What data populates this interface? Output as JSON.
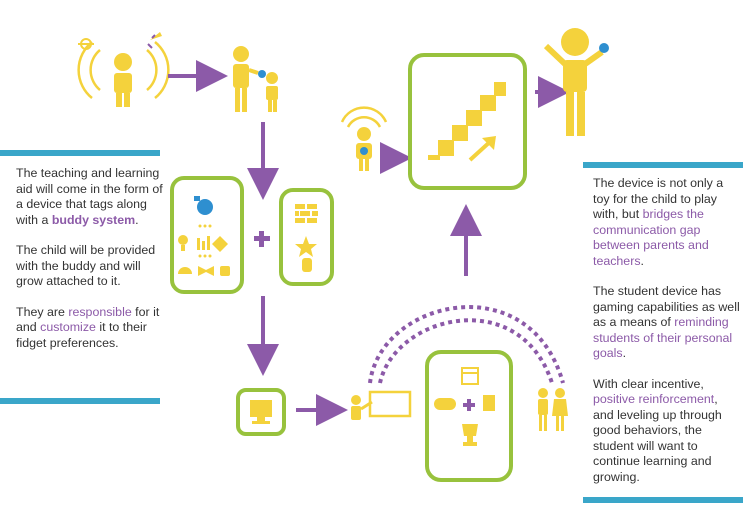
{
  "left_text": {
    "p1_a": "The teaching and learning aid will come in the form of a device that tags along with a ",
    "p1_b": "buddy system",
    "p1_c": ".",
    "p2": "The child will be provided with the buddy and will grow attached to it.",
    "p3_a": "They are ",
    "p3_b": "responsible",
    "p3_c": " for it and ",
    "p3_d": "customize",
    "p3_e": " it to their fidget preferences."
  },
  "right_text": {
    "p1_a": "The device is not only a toy for the child to play with, but ",
    "p1_b": "bridges the communication gap between parents and teachers",
    "p1_c": ".",
    "p2_a": "The student device has gaming capabilities as well as a means of ",
    "p2_b": "reminding students of their personal goals",
    "p2_c": ".",
    "p3_a": "With clear incentive, ",
    "p3_b": "positive reinforcement",
    "p3_c": ", and leveling up through good behaviors, the student will want to continue learning and growing."
  },
  "colors": {
    "yellow": "#f4d23c",
    "purple": "#8c5aa8",
    "green": "#98c23d",
    "blue": "#3aa6c9",
    "device_blue": "#2e8fd0"
  },
  "icons": [
    "child-hero-icon",
    "parent-child-icon",
    "stairs-icon",
    "celebrating-child-icon",
    "device-icon",
    "brick-wall-icon",
    "computer-icon",
    "teacher-board-icon",
    "calendar-icon",
    "gamepad-icon",
    "trophy-icon",
    "parents-icon"
  ]
}
